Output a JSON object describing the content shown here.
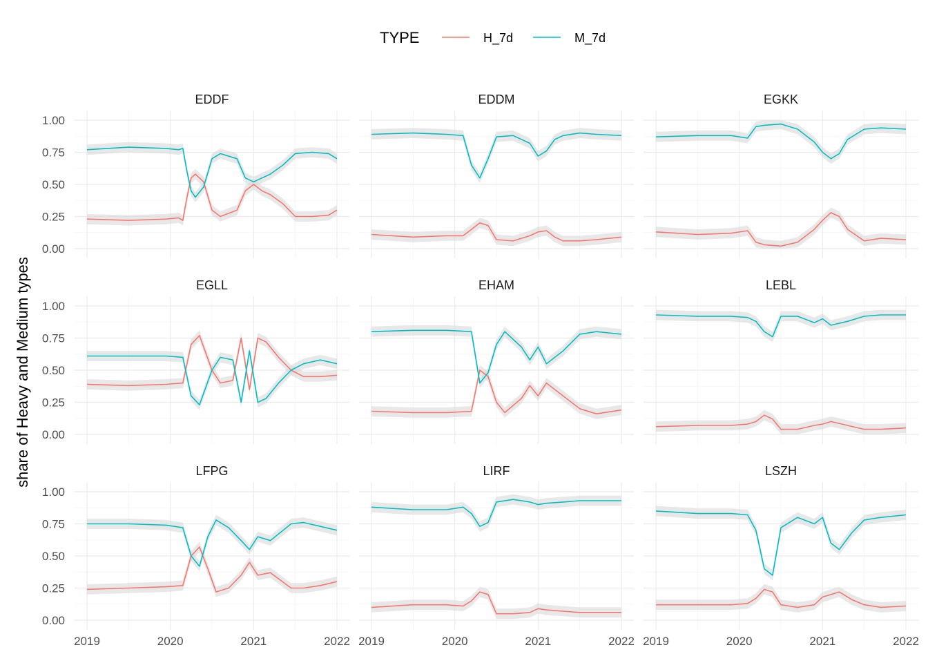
{
  "chart_data": {
    "type": "line",
    "facet_layout": "3x3 grid",
    "ylabel": "share of Heavy and Medium types",
    "xlabel": "",
    "x_ticks": [
      "2019",
      "2020",
      "2021",
      "2022"
    ],
    "y_ticks": [
      "0.00",
      "0.25",
      "0.50",
      "0.75",
      "1.00"
    ],
    "ylim": [
      0,
      1
    ],
    "xlim": [
      2019,
      2022
    ],
    "grid": true,
    "ribbon": "grey band around each line",
    "legend": {
      "title": "TYPE",
      "position": "top",
      "entries": [
        {
          "name": "H_7d",
          "color": "#F8766D"
        },
        {
          "name": "M_7d",
          "color": "#00BFC4"
        }
      ]
    },
    "facets": [
      {
        "name": "EDDF",
        "x": [
          2019.0,
          2019.5,
          2019.95,
          2020.1,
          2020.15,
          2020.2,
          2020.25,
          2020.3,
          2020.4,
          2020.5,
          2020.6,
          2020.8,
          2020.9,
          2021.0,
          2021.1,
          2021.2,
          2021.35,
          2021.5,
          2021.7,
          2021.9,
          2022.0
        ],
        "series": [
          {
            "name": "H_7d",
            "values": [
              0.23,
              0.22,
              0.23,
              0.24,
              0.22,
              0.4,
              0.55,
              0.58,
              0.52,
              0.3,
              0.25,
              0.3,
              0.45,
              0.5,
              0.45,
              0.42,
              0.35,
              0.25,
              0.25,
              0.26,
              0.3
            ]
          },
          {
            "name": "M_7d",
            "values": [
              0.77,
              0.79,
              0.78,
              0.77,
              0.78,
              0.6,
              0.45,
              0.4,
              0.48,
              0.7,
              0.74,
              0.7,
              0.55,
              0.52,
              0.55,
              0.58,
              0.65,
              0.74,
              0.75,
              0.74,
              0.7
            ]
          }
        ]
      },
      {
        "name": "EDDM",
        "x": [
          2019.0,
          2019.5,
          2019.9,
          2020.1,
          2020.2,
          2020.3,
          2020.4,
          2020.5,
          2020.7,
          2020.9,
          2021.0,
          2021.1,
          2021.2,
          2021.3,
          2021.5,
          2021.7,
          2022.0
        ],
        "series": [
          {
            "name": "H_7d",
            "values": [
              0.11,
              0.09,
              0.1,
              0.1,
              0.15,
              0.2,
              0.18,
              0.07,
              0.06,
              0.1,
              0.13,
              0.14,
              0.09,
              0.06,
              0.06,
              0.07,
              0.09
            ]
          },
          {
            "name": "M_7d",
            "values": [
              0.89,
              0.9,
              0.89,
              0.88,
              0.65,
              0.55,
              0.7,
              0.87,
              0.88,
              0.82,
              0.72,
              0.76,
              0.85,
              0.88,
              0.9,
              0.89,
              0.88
            ]
          }
        ]
      },
      {
        "name": "EGKK",
        "x": [
          2019.0,
          2019.5,
          2019.9,
          2020.1,
          2020.2,
          2020.3,
          2020.5,
          2020.7,
          2020.9,
          2021.0,
          2021.1,
          2021.2,
          2021.3,
          2021.5,
          2021.7,
          2022.0
        ],
        "series": [
          {
            "name": "H_7d",
            "values": [
              0.13,
              0.11,
              0.12,
              0.14,
              0.05,
              0.03,
              0.02,
              0.05,
              0.15,
              0.22,
              0.28,
              0.25,
              0.15,
              0.06,
              0.08,
              0.07
            ]
          },
          {
            "name": "M_7d",
            "values": [
              0.87,
              0.88,
              0.88,
              0.86,
              0.95,
              0.96,
              0.97,
              0.93,
              0.83,
              0.75,
              0.7,
              0.74,
              0.85,
              0.93,
              0.94,
              0.93
            ]
          }
        ]
      },
      {
        "name": "EGLL",
        "x": [
          2019.0,
          2019.5,
          2019.95,
          2020.15,
          2020.25,
          2020.35,
          2020.5,
          2020.6,
          2020.75,
          2020.85,
          2020.95,
          2021.05,
          2021.15,
          2021.3,
          2021.45,
          2021.6,
          2021.8,
          2022.0
        ],
        "series": [
          {
            "name": "H_7d",
            "values": [
              0.39,
              0.38,
              0.39,
              0.4,
              0.7,
              0.77,
              0.5,
              0.4,
              0.42,
              0.75,
              0.35,
              0.75,
              0.72,
              0.6,
              0.5,
              0.45,
              0.45,
              0.46
            ]
          },
          {
            "name": "M_7d",
            "values": [
              0.61,
              0.61,
              0.61,
              0.6,
              0.3,
              0.23,
              0.5,
              0.6,
              0.58,
              0.25,
              0.65,
              0.25,
              0.28,
              0.4,
              0.5,
              0.55,
              0.58,
              0.55
            ]
          }
        ]
      },
      {
        "name": "EHAM",
        "x": [
          2019.0,
          2019.5,
          2019.9,
          2020.2,
          2020.3,
          2020.4,
          2020.5,
          2020.6,
          2020.8,
          2020.9,
          2021.0,
          2021.1,
          2021.3,
          2021.5,
          2021.7,
          2022.0
        ],
        "series": [
          {
            "name": "H_7d",
            "values": [
              0.18,
              0.17,
              0.17,
              0.18,
              0.5,
              0.45,
              0.25,
              0.17,
              0.28,
              0.38,
              0.3,
              0.4,
              0.3,
              0.2,
              0.16,
              0.19
            ]
          },
          {
            "name": "M_7d",
            "values": [
              0.8,
              0.81,
              0.81,
              0.8,
              0.4,
              0.48,
              0.7,
              0.8,
              0.68,
              0.58,
              0.68,
              0.55,
              0.65,
              0.78,
              0.8,
              0.78
            ]
          }
        ]
      },
      {
        "name": "LEBL",
        "x": [
          2019.0,
          2019.5,
          2019.9,
          2020.1,
          2020.2,
          2020.3,
          2020.4,
          2020.5,
          2020.7,
          2020.9,
          2021.0,
          2021.1,
          2021.3,
          2021.5,
          2021.7,
          2022.0
        ],
        "series": [
          {
            "name": "H_7d",
            "values": [
              0.06,
              0.07,
              0.07,
              0.08,
              0.1,
              0.15,
              0.12,
              0.04,
              0.04,
              0.07,
              0.08,
              0.1,
              0.07,
              0.04,
              0.04,
              0.05
            ]
          },
          {
            "name": "M_7d",
            "values": [
              0.93,
              0.92,
              0.92,
              0.91,
              0.88,
              0.8,
              0.76,
              0.92,
              0.92,
              0.87,
              0.9,
              0.85,
              0.88,
              0.92,
              0.93,
              0.93
            ]
          }
        ]
      },
      {
        "name": "LFPG",
        "x": [
          2019.0,
          2019.5,
          2019.95,
          2020.15,
          2020.25,
          2020.35,
          2020.45,
          2020.55,
          2020.7,
          2020.85,
          2020.95,
          2021.05,
          2021.2,
          2021.45,
          2021.6,
          2021.8,
          2022.0
        ],
        "series": [
          {
            "name": "H_7d",
            "values": [
              0.24,
              0.25,
              0.26,
              0.27,
              0.5,
              0.57,
              0.4,
              0.22,
              0.25,
              0.35,
              0.45,
              0.35,
              0.37,
              0.25,
              0.25,
              0.27,
              0.3
            ]
          },
          {
            "name": "M_7d",
            "values": [
              0.75,
              0.75,
              0.74,
              0.72,
              0.5,
              0.42,
              0.65,
              0.78,
              0.72,
              0.62,
              0.55,
              0.65,
              0.62,
              0.75,
              0.76,
              0.73,
              0.7
            ]
          }
        ]
      },
      {
        "name": "LIRF",
        "x": [
          2019.0,
          2019.5,
          2019.9,
          2020.1,
          2020.2,
          2020.3,
          2020.4,
          2020.5,
          2020.7,
          2020.9,
          2021.0,
          2021.1,
          2021.3,
          2021.5,
          2021.7,
          2022.0
        ],
        "series": [
          {
            "name": "H_7d",
            "values": [
              0.1,
              0.12,
              0.12,
              0.11,
              0.15,
              0.22,
              0.2,
              0.05,
              0.05,
              0.06,
              0.09,
              0.08,
              0.07,
              0.06,
              0.06,
              0.06
            ]
          },
          {
            "name": "M_7d",
            "values": [
              0.88,
              0.86,
              0.86,
              0.88,
              0.83,
              0.73,
              0.76,
              0.92,
              0.94,
              0.92,
              0.9,
              0.91,
              0.92,
              0.93,
              0.93,
              0.93
            ]
          }
        ]
      },
      {
        "name": "LSZH",
        "x": [
          2019.0,
          2019.5,
          2019.9,
          2020.1,
          2020.2,
          2020.3,
          2020.4,
          2020.5,
          2020.7,
          2020.9,
          2021.0,
          2021.1,
          2021.2,
          2021.35,
          2021.5,
          2021.7,
          2022.0
        ],
        "series": [
          {
            "name": "H_7d",
            "values": [
              0.12,
              0.12,
              0.12,
              0.13,
              0.17,
              0.24,
              0.22,
              0.12,
              0.1,
              0.12,
              0.18,
              0.2,
              0.22,
              0.16,
              0.12,
              0.1,
              0.11
            ]
          },
          {
            "name": "M_7d",
            "values": [
              0.85,
              0.83,
              0.83,
              0.82,
              0.7,
              0.4,
              0.35,
              0.72,
              0.8,
              0.75,
              0.8,
              0.6,
              0.55,
              0.68,
              0.78,
              0.8,
              0.82
            ]
          }
        ]
      }
    ]
  }
}
